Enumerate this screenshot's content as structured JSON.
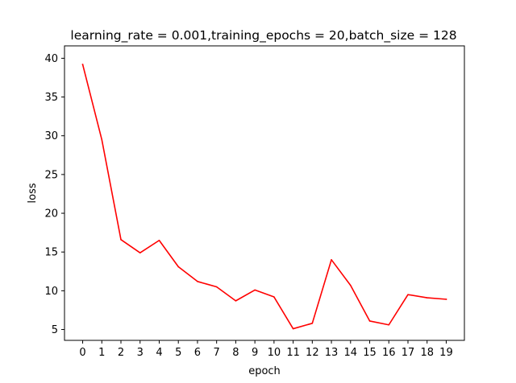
{
  "chart_data": {
    "type": "line",
    "title": "learning_rate = 0.001,training_epochs = 20,batch_size = 128",
    "xlabel": "epoch",
    "ylabel": "loss",
    "x": [
      0,
      1,
      2,
      3,
      4,
      5,
      6,
      7,
      8,
      9,
      10,
      11,
      12,
      13,
      14,
      15,
      16,
      17,
      18,
      19
    ],
    "x_ticks": [
      "0",
      "1",
      "2",
      "3",
      "4",
      "5",
      "6",
      "7",
      "8",
      "9",
      "10",
      "11",
      "12",
      "13",
      "14",
      "15",
      "16",
      "17",
      "18",
      "19"
    ],
    "y_ticks": [
      "5",
      "10",
      "15",
      "20",
      "25",
      "30",
      "35",
      "40"
    ],
    "series": [
      {
        "values": [
          39.2,
          29.5,
          16.6,
          14.9,
          16.5,
          13.1,
          11.2,
          10.5,
          8.7,
          10.1,
          9.2,
          5.1,
          5.8,
          14.0,
          10.7,
          6.1,
          5.6,
          9.5,
          9.1,
          8.9
        ],
        "color": "#ff0000"
      }
    ],
    "xlim": [
      -0.95,
      19.95
    ],
    "ylim": [
      3.6,
      41.6
    ],
    "grid": false,
    "legend": "none"
  }
}
